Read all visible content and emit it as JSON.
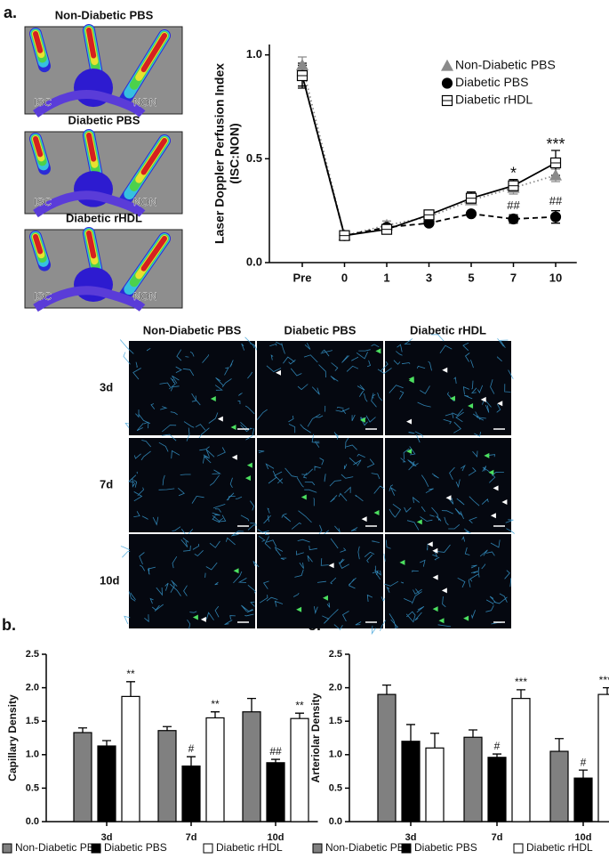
{
  "panel_labels": [
    "a.",
    "b.",
    "c."
  ],
  "laser_images": [
    {
      "title": "Non-Diabetic PBS",
      "labels": [
        "ISC",
        "NON"
      ]
    },
    {
      "title": "Diabetic PBS",
      "labels": [
        "ISC",
        "NON"
      ]
    },
    {
      "title": "Diabetic rHDL",
      "labels": [
        "ISC",
        "NON"
      ]
    }
  ],
  "micrographs": {
    "columns": [
      "Non-Diabetic PBS",
      "Diabetic PBS",
      "Diabetic rHDL"
    ],
    "rows": [
      "3d",
      "7d",
      "10d"
    ]
  },
  "chart_data": [
    {
      "type": "line",
      "ylabel": [
        "Laser Doppler Perfusion Index",
        "(ISC:NON)"
      ],
      "categories": [
        "Pre",
        "0",
        "1",
        "3",
        "5",
        "7",
        "10"
      ],
      "ylim": [
        0,
        1.05
      ],
      "yticks": [
        {
          "value": 0,
          "label": "0.0"
        },
        {
          "value": 0.5,
          "label": "0.5"
        },
        {
          "value": 1,
          "label": "1.0"
        }
      ],
      "series": [
        {
          "name": "Non-Diabetic PBS",
          "color": "#8a8a8a",
          "marker": "triangle",
          "linestyle": "dotted",
          "values": [
            0.95,
            0.13,
            0.18,
            0.22,
            0.3,
            0.36,
            0.42
          ],
          "errors": [
            0.04,
            0.01,
            0.02,
            0.02,
            0.02,
            0.03,
            0.03
          ]
        },
        {
          "name": "Diabetic PBS",
          "color": "#000000",
          "marker": "circle",
          "linestyle": "dashed",
          "values": [
            0.9,
            0.13,
            0.17,
            0.19,
            0.235,
            0.21,
            0.22
          ],
          "errors": [
            0.05,
            0.01,
            0.01,
            0.01,
            0.01,
            0.02,
            0.03
          ]
        },
        {
          "name": "Diabetic rHDL",
          "color": "#ffffff",
          "marker": "square",
          "linestyle": "solid",
          "values": [
            0.9,
            0.13,
            0.16,
            0.23,
            0.31,
            0.37,
            0.48
          ],
          "errors": [
            0.06,
            0.01,
            0.02,
            0.02,
            0.03,
            0.03,
            0.06
          ]
        }
      ],
      "annotations": [
        {
          "text": "*",
          "series": "Diabetic rHDL",
          "category": "7"
        },
        {
          "text": "***",
          "series": "Diabetic rHDL",
          "category": "10"
        },
        {
          "text": "##",
          "series": "Diabetic PBS",
          "category": "7"
        },
        {
          "text": "##",
          "series": "Diabetic PBS",
          "category": "10"
        }
      ]
    },
    {
      "type": "bar",
      "ylabel": "Capillary Density",
      "categories": [
        "3d",
        "7d",
        "10d"
      ],
      "ylim": [
        0,
        2.5
      ],
      "yticks": [
        {
          "value": 0,
          "label": "0.0"
        },
        {
          "value": 0.5,
          "label": "0.5"
        },
        {
          "value": 1,
          "label": "1.0"
        },
        {
          "value": 1.5,
          "label": "1.5"
        },
        {
          "value": 2,
          "label": "2.0"
        },
        {
          "value": 2.5,
          "label": "2.5"
        }
      ],
      "series": [
        {
          "name": "Non-Diabetic PBS",
          "color": "#808080",
          "values": [
            1.33,
            1.36,
            1.64
          ],
          "errors": [
            0.07,
            0.06,
            0.2
          ]
        },
        {
          "name": "Diabetic PBS",
          "color": "#000000",
          "values": [
            1.13,
            0.83,
            0.88
          ],
          "errors": [
            0.08,
            0.14,
            0.05
          ]
        },
        {
          "name": "Diabetic rHDL",
          "color": "#ffffff",
          "values": [
            1.87,
            1.55,
            1.54
          ],
          "errors": [
            0.22,
            0.09,
            0.08
          ]
        }
      ],
      "annotations": [
        {
          "text": "**",
          "series": "Diabetic rHDL",
          "category": "3d"
        },
        {
          "text": "#",
          "series": "Diabetic PBS",
          "category": "7d"
        },
        {
          "text": "**",
          "series": "Diabetic rHDL",
          "category": "7d"
        },
        {
          "text": "##",
          "series": "Diabetic PBS",
          "category": "10d"
        },
        {
          "text": "**",
          "series": "Diabetic rHDL",
          "category": "10d"
        }
      ]
    },
    {
      "type": "bar",
      "ylabel": "Arteriolar Density",
      "categories": [
        "3d",
        "7d",
        "10d"
      ],
      "ylim": [
        0,
        2.5
      ],
      "yticks": [
        {
          "value": 0,
          "label": "0.0"
        },
        {
          "value": 0.5,
          "label": "0.5"
        },
        {
          "value": 1,
          "label": "1.0"
        },
        {
          "value": 1.5,
          "label": "1.5"
        },
        {
          "value": 2,
          "label": "2.0"
        },
        {
          "value": 2.5,
          "label": "2.5"
        }
      ],
      "series": [
        {
          "name": "Non-Diabetic PBS",
          "color": "#808080",
          "values": [
            1.9,
            1.26,
            1.05
          ],
          "errors": [
            0.14,
            0.11,
            0.19
          ]
        },
        {
          "name": "Diabetic PBS",
          "color": "#000000",
          "values": [
            1.2,
            0.96,
            0.65
          ],
          "errors": [
            0.25,
            0.05,
            0.12
          ]
        },
        {
          "name": "Diabetic rHDL",
          "color": "#ffffff",
          "values": [
            1.1,
            1.84,
            1.9
          ],
          "errors": [
            0.22,
            0.13,
            0.1
          ]
        }
      ],
      "annotations": [
        {
          "text": "#",
          "series": "Diabetic PBS",
          "category": "7d"
        },
        {
          "text": "***",
          "series": "Diabetic rHDL",
          "category": "7d"
        },
        {
          "text": "#",
          "series": "Diabetic PBS",
          "category": "10d"
        },
        {
          "text": "****",
          "series": "Diabetic rHDL",
          "category": "10d"
        }
      ]
    }
  ]
}
